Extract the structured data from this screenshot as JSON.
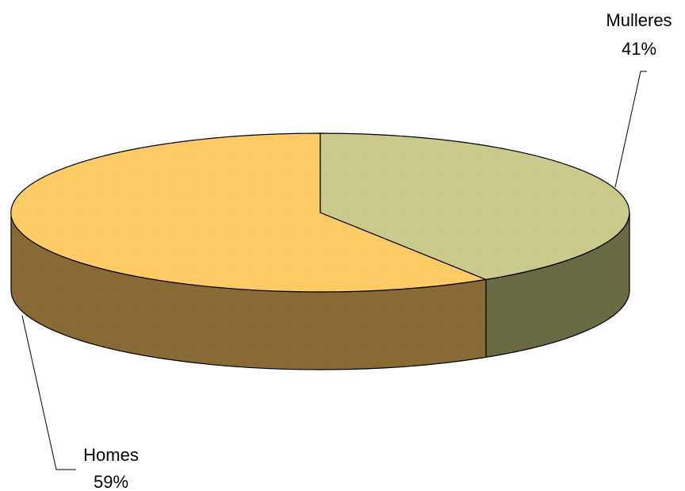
{
  "chart_data": {
    "type": "pie",
    "style": "3d",
    "slices": [
      {
        "label": "Mulleres",
        "percent_label": "41%",
        "value": 41,
        "color": "#cccc8f",
        "side_color": "#6b6b45"
      },
      {
        "label": "Homes",
        "percent_label": "59%",
        "value": 59,
        "color": "#ffcc66",
        "side_color": "#8b6b35"
      }
    ]
  }
}
